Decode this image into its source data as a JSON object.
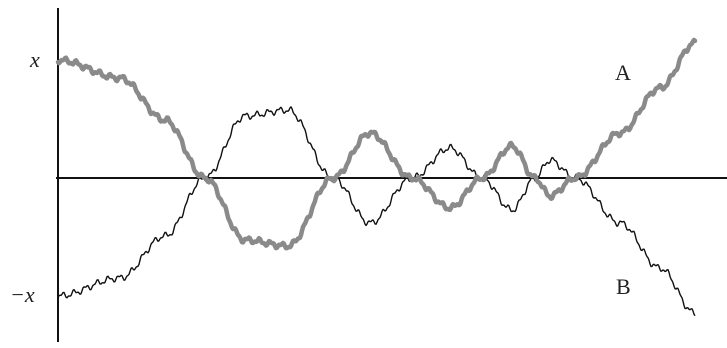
{
  "labels": {
    "y_top": "x",
    "y_bottom": "−x",
    "curve_a": "A",
    "curve_b": "B"
  },
  "colors": {
    "curve_a": "#8a8a8a",
    "curve_b": "#111111",
    "axes": "#111111"
  }
}
